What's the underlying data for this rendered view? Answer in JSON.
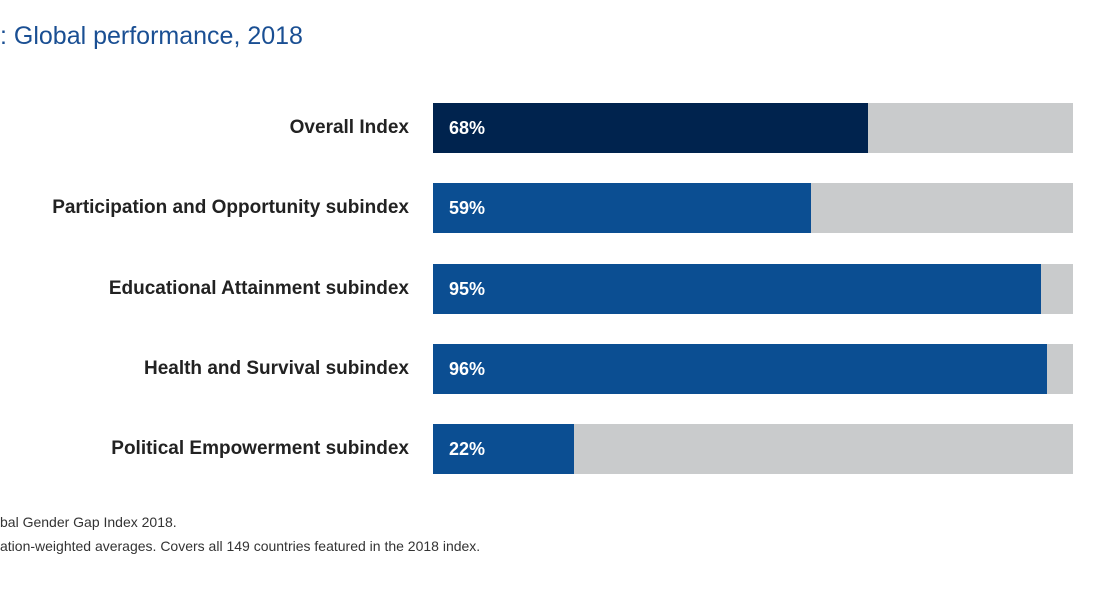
{
  "chart_data": {
    "type": "bar",
    "orientation": "horizontal",
    "title": ": Global performance, 2018",
    "categories": [
      "Overall Index",
      "Participation and Opportunity subindex",
      "Educational Attainment subindex",
      "Health and Survival subindex",
      "Political Empowerment subindex"
    ],
    "values": [
      68,
      59,
      95,
      96,
      22
    ],
    "value_labels": [
      "68%",
      "59%",
      "95%",
      "96%",
      "22%"
    ],
    "xlim": [
      0,
      100
    ],
    "unit": "%",
    "colors": {
      "overall": "#00234e",
      "subindex": "#0b4e92",
      "track": "#c9cbcc",
      "title": "#1a4f93"
    }
  },
  "notes": {
    "source": "bal Gender Gap Index 2018.",
    "note": "ation-weighted averages. Covers all 149 countries featured in the 2018 index."
  }
}
